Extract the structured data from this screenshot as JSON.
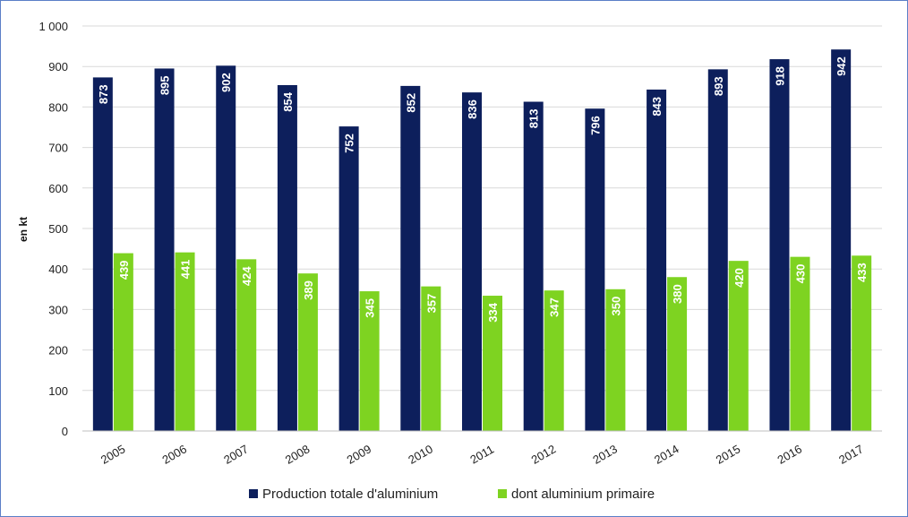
{
  "chart_data": {
    "type": "bar",
    "ylabel": "en kt",
    "xlabel": "",
    "title": "",
    "ylim": [
      0,
      1000
    ],
    "yticks": [
      "0",
      "100",
      "200",
      "300",
      "400",
      "500",
      "600",
      "700",
      "800",
      "900",
      "1 000"
    ],
    "ytick_values": [
      0,
      100,
      200,
      300,
      400,
      500,
      600,
      700,
      800,
      900,
      1000
    ],
    "categories": [
      "2005",
      "2006",
      "2007",
      "2008",
      "2009",
      "2010",
      "2011",
      "2012",
      "2013",
      "2014",
      "2015",
      "2016",
      "2017"
    ],
    "series": [
      {
        "name": "Production totale d'aluminium",
        "color": "#0d1f5c",
        "values": [
          873,
          895,
          902,
          854,
          752,
          852,
          836,
          813,
          796,
          843,
          893,
          918,
          942
        ]
      },
      {
        "name": "dont aluminium primaire",
        "color": "#7ed321",
        "values": [
          439,
          441,
          424,
          389,
          345,
          357,
          334,
          347,
          350,
          380,
          420,
          430,
          433
        ]
      }
    ],
    "grid": true,
    "legend_position": "bottom",
    "data_labels": true
  }
}
